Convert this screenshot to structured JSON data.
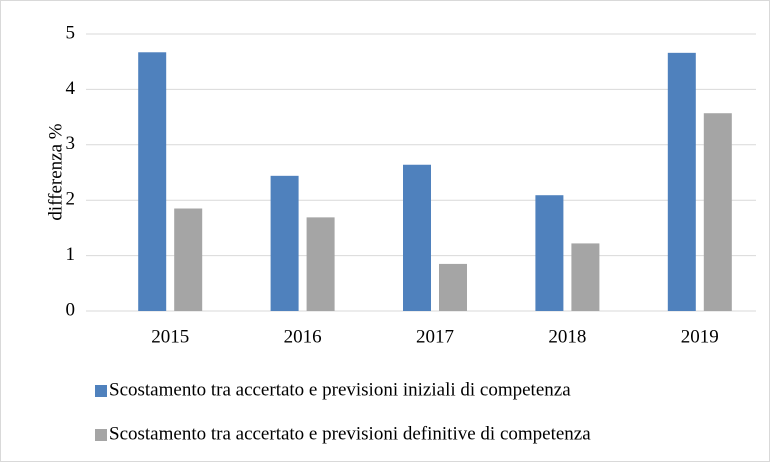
{
  "chart_data": {
    "type": "bar",
    "ylabel": "differenza %",
    "categories": [
      "2015",
      "2016",
      "2017",
      "2018",
      "2019"
    ],
    "series": [
      {
        "name": "Scostamento tra accertato e previsioni iniziali di competenza",
        "color": "#4f81bd",
        "values": [
          4.67,
          2.44,
          2.64,
          2.09,
          4.66
        ]
      },
      {
        "name": "Scostamento tra accertato e previsioni definitive di competenza",
        "color": "#a5a5a5",
        "values": [
          1.85,
          1.69,
          0.85,
          1.22,
          3.57
        ]
      }
    ],
    "ylim": [
      0,
      5
    ],
    "yticks": [
      0,
      1,
      2,
      3,
      4,
      5
    ],
    "grid": true
  }
}
